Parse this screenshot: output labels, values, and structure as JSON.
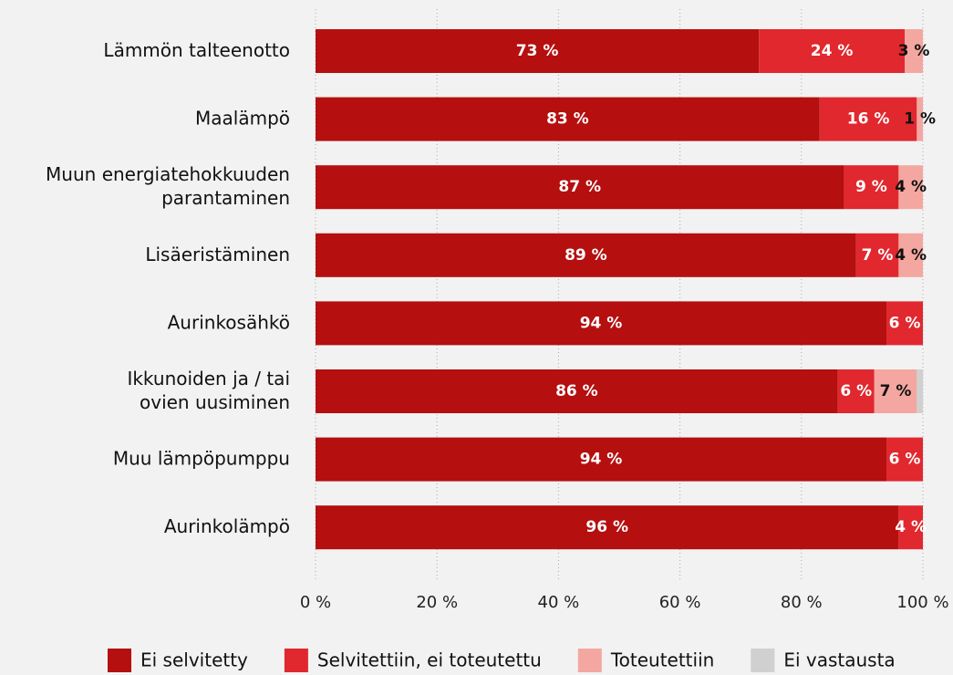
{
  "chart_data": {
    "type": "stacked_barh",
    "categories": [
      "Lämmön talteenotto",
      "Maalämpö",
      "Muun energiatehokkuuden\nparantaminen",
      "Lisäeristäminen",
      "Aurinkosähkö",
      "Ikkunoiden ja / tai\novien uusiminen",
      "Muu lämpöpumppu",
      "Aurinkolämpö"
    ],
    "series": [
      {
        "name": "Ei selvitetty",
        "color": "#b50f0f",
        "label_color": "#ffffff",
        "values": [
          73,
          83,
          87,
          89,
          94,
          86,
          94,
          96
        ],
        "value_labels": [
          "73 %",
          "83 %",
          "87 %",
          "89 %",
          "94 %",
          "86 %",
          "94 %",
          "96 %"
        ]
      },
      {
        "name": "Selvitettiin, ei toteutettu",
        "color": "#e0282e",
        "label_color": "#ffffff",
        "values": [
          24,
          16,
          9,
          7,
          6,
          6,
          6,
          4
        ],
        "value_labels": [
          "24 %",
          "16 %",
          "9 %",
          "7 %",
          "6 %",
          "6 %",
          "6 %",
          "4 %"
        ]
      },
      {
        "name": "Toteutettiin",
        "color": "#f4a7a0",
        "label_color": "#111111",
        "values": [
          3,
          1,
          4,
          4,
          0,
          7,
          0,
          0
        ],
        "value_labels": [
          "3 %",
          "1 %",
          "4 %",
          "4 %",
          null,
          "7 %",
          null,
          null
        ]
      },
      {
        "name": "Ei vastausta",
        "color": "#d0d0d0",
        "label_color": "#111111",
        "values": [
          0,
          0,
          0,
          0,
          0,
          1,
          0,
          0
        ],
        "value_labels": [
          null,
          null,
          null,
          null,
          null,
          null,
          null,
          null
        ]
      }
    ],
    "xlim": [
      0,
      100
    ],
    "xticks": [
      {
        "value": 0,
        "label": "0 %"
      },
      {
        "value": 20,
        "label": "20 %"
      },
      {
        "value": 40,
        "label": "40 %"
      },
      {
        "value": 60,
        "label": "60 %"
      },
      {
        "value": 80,
        "label": "80 %"
      },
      {
        "value": 100,
        "label": "100 %"
      }
    ],
    "grid": true,
    "legend": "bottom"
  }
}
